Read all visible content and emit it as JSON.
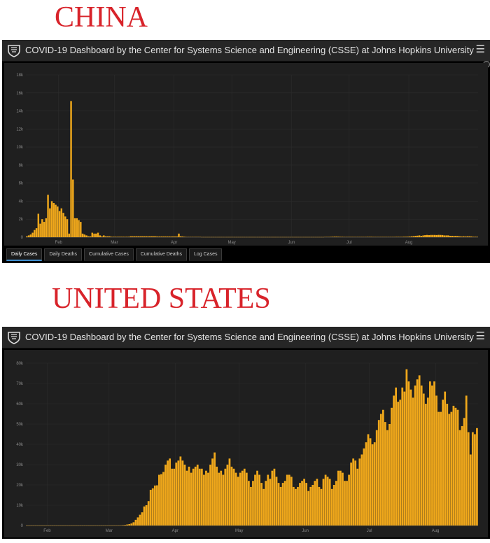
{
  "headings": {
    "china": "CHINA",
    "us": "UNITED STATES"
  },
  "dashboard": {
    "title": "COVID-19 Dashboard by the Center for Systems Science and Engineering (CSSE) at Johns Hopkins University",
    "menu_icon": "hamburger-menu-icon",
    "logo_icon": "jhu-shield-icon"
  },
  "colors": {
    "bar": "#f0a81b",
    "background": "#1f1f1f",
    "panel": "#000000",
    "grid": "#2e2e2e",
    "heading": "#d8232a"
  },
  "china_tabs": [
    "Daily Cases",
    "Daily Deaths",
    "Cumulative Cases",
    "Cumulative Deaths",
    "Log Cases"
  ],
  "chart_data": [
    {
      "type": "bar",
      "name": "china",
      "title": "",
      "xlabel": "",
      "ylabel": "",
      "x_start": "2020-01-15",
      "x_ticks": [
        "Feb",
        "Mar",
        "Apr",
        "May",
        "Jun",
        "Jul",
        "Aug"
      ],
      "x_tick_dates": [
        "2020-02-01",
        "2020-03-01",
        "2020-04-01",
        "2020-05-01",
        "2020-06-01",
        "2020-07-01",
        "2020-08-01"
      ],
      "y_ticks": [
        "0",
        "2k",
        "4k",
        "6k",
        "8k",
        "10k",
        "12k",
        "14k",
        "16k",
        "18k"
      ],
      "ylim": [
        0,
        18000
      ],
      "values": [
        100,
        200,
        300,
        500,
        800,
        1000,
        2600,
        1500,
        2000,
        1700,
        2100,
        4700,
        3200,
        4000,
        3800,
        3600,
        3400,
        2900,
        3200,
        2700,
        2300,
        2000,
        400,
        15100,
        6400,
        2100,
        2100,
        1900,
        1700,
        400,
        300,
        200,
        100,
        100,
        500,
        400,
        400,
        500,
        200,
        100,
        200,
        100,
        100,
        100,
        50,
        50,
        50,
        50,
        50,
        50,
        50,
        50,
        50,
        50,
        100,
        100,
        100,
        100,
        100,
        100,
        100,
        100,
        100,
        100,
        100,
        100,
        100,
        100,
        80,
        80,
        80,
        80,
        80,
        80,
        80,
        80,
        80,
        80,
        80,
        400,
        100,
        80,
        50,
        30,
        30,
        30,
        30,
        30,
        30,
        30,
        30,
        20,
        20,
        20,
        20,
        20,
        20,
        20,
        20,
        20,
        20,
        20,
        20,
        20,
        20,
        20,
        20,
        20,
        20,
        20,
        20,
        20,
        20,
        20,
        20,
        20,
        20,
        20,
        20,
        20,
        20,
        20,
        20,
        20,
        20,
        20,
        20,
        20,
        20,
        20,
        20,
        20,
        20,
        20,
        20,
        20,
        20,
        20,
        20,
        20,
        20,
        20,
        20,
        20,
        20,
        20,
        20,
        20,
        20,
        20,
        20,
        20,
        20,
        20,
        20,
        30,
        30,
        30,
        40,
        50,
        60,
        60,
        50,
        40,
        40,
        30,
        30,
        30,
        30,
        30,
        30,
        30,
        30,
        30,
        30,
        30,
        30,
        40,
        40,
        40,
        30,
        30,
        30,
        30,
        30,
        30,
        30,
        30,
        30,
        30,
        30,
        30,
        40,
        40,
        40,
        40,
        50,
        50,
        60,
        80,
        100,
        120,
        150,
        170,
        200,
        150,
        200,
        230,
        250,
        230,
        250,
        250,
        250,
        240,
        260,
        250,
        240,
        200,
        200,
        200,
        150,
        150,
        140,
        150,
        130,
        100,
        80,
        100,
        80,
        100,
        100,
        80,
        50,
        50,
        50
      ]
    },
    {
      "type": "bar",
      "name": "united-states",
      "title": "",
      "xlabel": "",
      "ylabel": "",
      "x_start": "2020-01-22",
      "x_ticks": [
        "Feb",
        "Mar",
        "Apr",
        "May",
        "Jun",
        "Jul",
        "Aug"
      ],
      "x_tick_dates": [
        "2020-02-01",
        "2020-03-01",
        "2020-04-01",
        "2020-05-01",
        "2020-06-01",
        "2020-07-01",
        "2020-08-01"
      ],
      "y_ticks": [
        "0",
        "10k",
        "20k",
        "30k",
        "40k",
        "50k",
        "60k",
        "70k",
        "80k"
      ],
      "ylim": [
        0,
        80000
      ],
      "values": [
        0,
        0,
        0,
        0,
        0,
        0,
        0,
        0,
        0,
        0,
        0,
        0,
        0,
        0,
        0,
        0,
        0,
        0,
        0,
        0,
        0,
        0,
        0,
        0,
        0,
        0,
        0,
        0,
        0,
        0,
        0,
        0,
        0,
        0,
        0,
        0,
        0,
        0,
        0,
        20,
        30,
        50,
        60,
        80,
        120,
        200,
        300,
        500,
        700,
        1000,
        1600,
        2800,
        4000,
        5300,
        6500,
        9400,
        10000,
        12000,
        17600,
        18300,
        19700,
        19800,
        25000,
        25300,
        26400,
        30000,
        32000,
        33000,
        28000,
        28000,
        31000,
        32000,
        34000,
        32000,
        30000,
        27000,
        29000,
        26000,
        28000,
        29000,
        30000,
        28000,
        28000,
        25000,
        27000,
        26000,
        30000,
        33000,
        36000,
        29000,
        26000,
        27000,
        25000,
        28000,
        30000,
        33000,
        29000,
        28000,
        26000,
        24000,
        26000,
        27000,
        28000,
        26000,
        22000,
        19000,
        22000,
        25000,
        27000,
        25000,
        21000,
        18000,
        22000,
        25000,
        23000,
        27000,
        28000,
        24000,
        21000,
        19000,
        21000,
        22000,
        25000,
        25000,
        24000,
        19000,
        18000,
        19000,
        21000,
        22000,
        23000,
        21000,
        17000,
        19000,
        20000,
        22000,
        23000,
        19000,
        18000,
        23000,
        25000,
        24000,
        23000,
        18000,
        20000,
        22000,
        27000,
        27000,
        26000,
        22000,
        22000,
        25000,
        31000,
        33000,
        32000,
        28000,
        33000,
        35000,
        38000,
        41000,
        45000,
        43000,
        40000,
        41000,
        47000,
        52000,
        55000,
        57000,
        51000,
        47000,
        50000,
        58000,
        64000,
        68000,
        61000,
        62000,
        68000,
        66000,
        77000,
        71000,
        67000,
        63000,
        69000,
        72000,
        74000,
        69000,
        65000,
        60000,
        63000,
        71000,
        69000,
        71000,
        64000,
        56000,
        56000,
        62000,
        66000,
        60000,
        55000,
        56000,
        59000,
        58000,
        57000,
        47000,
        49000,
        53000,
        64000,
        46000,
        35000,
        46000,
        45000,
        48000
      ]
    }
  ]
}
